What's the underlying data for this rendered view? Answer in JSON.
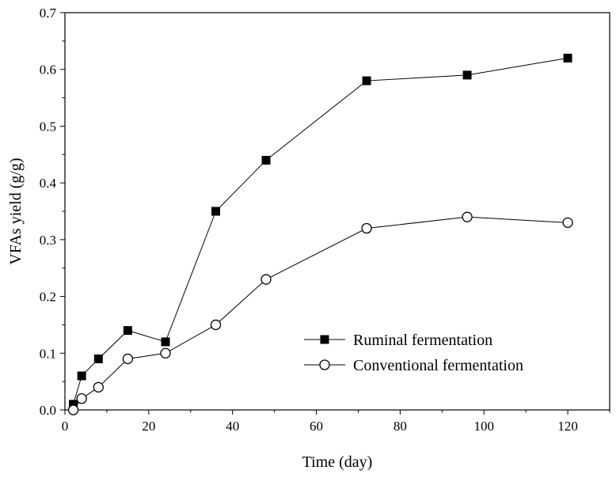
{
  "chart_data": {
    "type": "line",
    "title": "",
    "xlabel": "Time (day)",
    "ylabel": "VFAs yield (g/g)",
    "xlim": [
      0,
      130
    ],
    "ylim": [
      0,
      0.7
    ],
    "x_ticks": [
      0,
      20,
      40,
      60,
      80,
      100,
      120
    ],
    "y_ticks": [
      0.0,
      0.1,
      0.2,
      0.3,
      0.4,
      0.5,
      0.6,
      0.7
    ],
    "x_tick_labels": [
      "0",
      "20",
      "40",
      "60",
      "80",
      "100",
      "120"
    ],
    "y_tick_labels": [
      "0.0",
      "0.1",
      "0.2",
      "0.3",
      "0.4",
      "0.5",
      "0.6",
      "0.7"
    ],
    "grid": false,
    "legend_position": "center-right",
    "series": [
      {
        "name": "Ruminal fermentation",
        "marker": "filled-square",
        "color": "#000000",
        "x": [
          2,
          4,
          8,
          15,
          24,
          36,
          48,
          72,
          96,
          120
        ],
        "y": [
          0.01,
          0.06,
          0.09,
          0.14,
          0.12,
          0.35,
          0.44,
          0.58,
          0.59,
          0.62
        ]
      },
      {
        "name": "Conventional fermentation",
        "marker": "open-circle",
        "color": "#000000",
        "x": [
          2,
          4,
          8,
          15,
          24,
          36,
          48,
          72,
          96,
          120
        ],
        "y": [
          0.0,
          0.02,
          0.04,
          0.09,
          0.1,
          0.15,
          0.23,
          0.32,
          0.34,
          0.33
        ]
      }
    ]
  }
}
